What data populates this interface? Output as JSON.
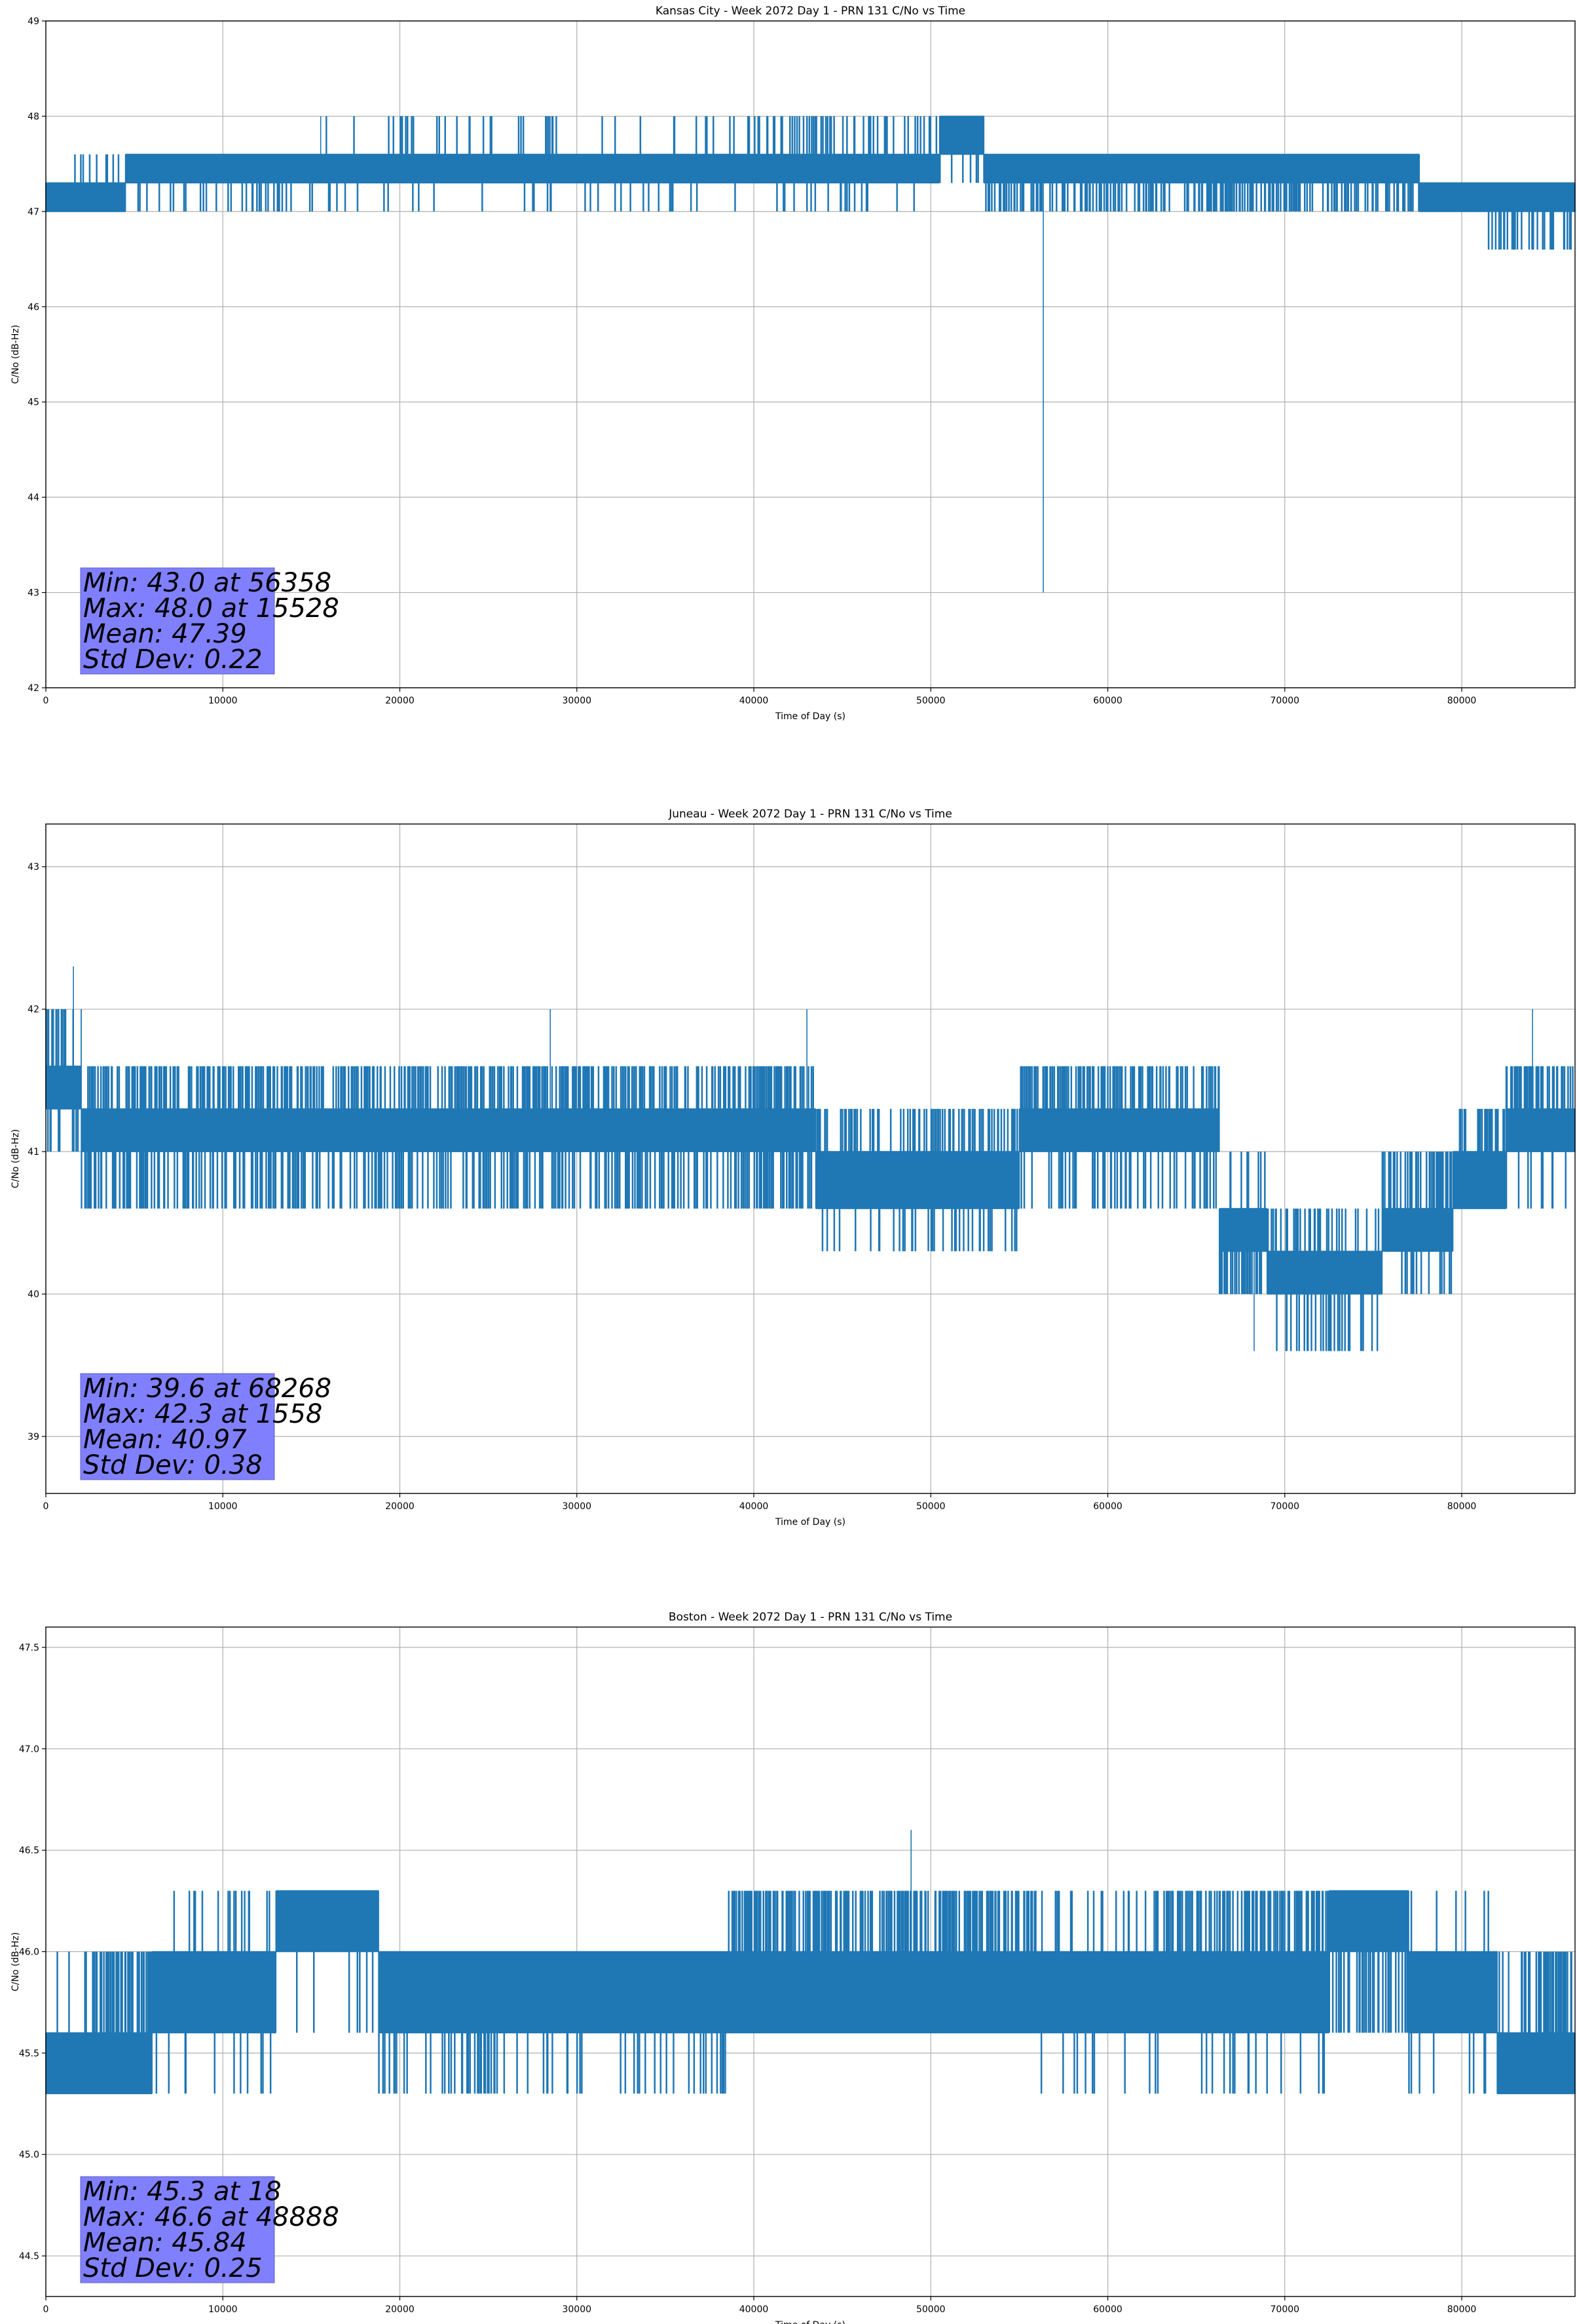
{
  "chart_data": [
    {
      "type": "line",
      "title": "Kansas City - Week 2072 Day 1 - PRN 131 C/No vs Time",
      "xlabel": "Time of Day (s)",
      "ylabel": "C/No (dB-Hz)",
      "xlim": [
        0,
        86400
      ],
      "ylim": [
        42,
        49
      ],
      "xticks": [
        0,
        10000,
        20000,
        30000,
        40000,
        50000,
        60000,
        70000,
        80000
      ],
      "yticks": [
        42,
        43,
        44,
        45,
        46,
        47,
        48,
        49
      ],
      "ytick_labels": [
        "42",
        "43",
        "44",
        "45",
        "46",
        "47",
        "48",
        "49"
      ],
      "grid": true,
      "line_color": "#1f77b4",
      "stats_box_color": "#8080ff",
      "stats": [
        "Min: 43.0 at 56358",
        "Max: 48.0 at 15528",
        "Mean: 47.39",
        "Std Dev: 0.22"
      ],
      "series": [
        {
          "name": "C/No",
          "segments": [
            {
              "x0": 0,
              "x1": 4500,
              "levels": [
                47.0,
                47.3
              ],
              "up": 47.6,
              "up_rate": 0.1,
              "down": 47.0,
              "down_rate": 0.0
            },
            {
              "x0": 4500,
              "x1": 15500,
              "levels": [
                47.3,
                47.6
              ],
              "up": 47.6,
              "up_rate": 0.0,
              "down": 47.0,
              "down_rate": 0.1
            },
            {
              "x0": 15500,
              "x1": 40000,
              "levels": [
                47.3,
                47.6
              ],
              "up": 48.0,
              "up_rate": 0.06,
              "down": 47.0,
              "down_rate": 0.03
            },
            {
              "x0": 40000,
              "x1": 50500,
              "levels": [
                47.3,
                47.6
              ],
              "up": 48.0,
              "up_rate": 0.15,
              "down": 47.0,
              "down_rate": 0.08
            },
            {
              "x0": 50500,
              "x1": 53000,
              "levels": [
                47.6,
                48.0
              ],
              "up": 48.0,
              "up_rate": 0.0,
              "down": 47.3,
              "down_rate": 0.1
            },
            {
              "x0": 53000,
              "x1": 77600,
              "levels": [
                47.3,
                47.6
              ],
              "up": 47.6,
              "up_rate": 0.0,
              "down": 47.0,
              "down_rate": 0.25
            },
            {
              "x0": 77600,
              "x1": 81500,
              "levels": [
                47.0,
                47.3
              ],
              "up": 47.3,
              "up_rate": 0.0,
              "down": 47.0,
              "down_rate": 0.0
            },
            {
              "x0": 81500,
              "x1": 86400,
              "levels": [
                47.0,
                47.3
              ],
              "up": 47.3,
              "up_rate": 0.0,
              "down": 46.6,
              "down_rate": 0.18
            }
          ],
          "spikes": [
            {
              "x": 15528,
              "y": 48.0
            },
            {
              "x": 56358,
              "y": 43.0
            }
          ]
        }
      ]
    },
    {
      "type": "line",
      "title": "Juneau - Week 2072 Day 1 - PRN 131 C/No vs Time",
      "xlabel": "Time of Day (s)",
      "ylabel": "C/No (dB-Hz)",
      "xlim": [
        0,
        86400
      ],
      "ylim": [
        38.6,
        43.3
      ],
      "xticks": [
        0,
        10000,
        20000,
        30000,
        40000,
        50000,
        60000,
        70000,
        80000
      ],
      "yticks": [
        39,
        40,
        41,
        42,
        43
      ],
      "ytick_labels": [
        "39",
        "40",
        "41",
        "42",
        "43"
      ],
      "grid": true,
      "line_color": "#1f77b4",
      "stats_box_color": "#8080ff",
      "stats": [
        "Min: 39.6 at 68268",
        "Max: 42.3 at 1558",
        "Mean: 40.97",
        "Std Dev: 0.38"
      ],
      "series": [
        {
          "name": "C/No",
          "segments": [
            {
              "x0": 0,
              "x1": 2000,
              "levels": [
                41.3,
                41.6
              ],
              "up": 42.0,
              "up_rate": 0.25,
              "down": 41.0,
              "down_rate": 0.2
            },
            {
              "x0": 2000,
              "x1": 43500,
              "levels": [
                41.0,
                41.3
              ],
              "up": 41.6,
              "up_rate": 0.3,
              "down": 40.6,
              "down_rate": 0.22
            },
            {
              "x0": 43500,
              "x1": 55000,
              "levels": [
                40.6,
                41.0
              ],
              "up": 41.3,
              "up_rate": 0.2,
              "down": 40.3,
              "down_rate": 0.1
            },
            {
              "x0": 55000,
              "x1": 66300,
              "levels": [
                41.0,
                41.3
              ],
              "up": 41.6,
              "up_rate": 0.3,
              "down": 40.6,
              "down_rate": 0.2
            },
            {
              "x0": 66300,
              "x1": 69000,
              "levels": [
                40.3,
                40.6
              ],
              "up": 41.0,
              "up_rate": 0.15,
              "down": 40.0,
              "down_rate": 0.3
            },
            {
              "x0": 69000,
              "x1": 75500,
              "levels": [
                40.0,
                40.3
              ],
              "up": 40.6,
              "up_rate": 0.2,
              "down": 39.6,
              "down_rate": 0.15
            },
            {
              "x0": 75500,
              "x1": 79500,
              "levels": [
                40.3,
                40.6
              ],
              "up": 41.0,
              "up_rate": 0.3,
              "down": 40.0,
              "down_rate": 0.1
            },
            {
              "x0": 79500,
              "x1": 82500,
              "levels": [
                40.6,
                41.0
              ],
              "up": 41.3,
              "up_rate": 0.3,
              "down": 40.6,
              "down_rate": 0.0
            },
            {
              "x0": 82500,
              "x1": 86400,
              "levels": [
                41.0,
                41.3
              ],
              "up": 41.6,
              "up_rate": 0.3,
              "down": 40.6,
              "down_rate": 0.1
            }
          ],
          "spikes": [
            {
              "x": 1558,
              "y": 42.3
            },
            {
              "x": 68268,
              "y": 39.6
            },
            {
              "x": 84000,
              "y": 42.0
            },
            {
              "x": 28500,
              "y": 42.0
            },
            {
              "x": 43000,
              "y": 42.0
            }
          ]
        }
      ]
    },
    {
      "type": "line",
      "title": "Boston - Week 2072 Day 1 - PRN 131 C/No vs Time",
      "xlabel": "Time of Day (s)",
      "ylabel": "C/No (dB-Hz)",
      "xlim": [
        0,
        86400
      ],
      "ylim": [
        44.3,
        47.6
      ],
      "xticks": [
        0,
        10000,
        20000,
        30000,
        40000,
        50000,
        60000,
        70000,
        80000
      ],
      "yticks": [
        44.5,
        45.0,
        45.5,
        46.0,
        46.5,
        47.0,
        47.5
      ],
      "ytick_labels": [
        "44.5",
        "45.0",
        "45.5",
        "46.0",
        "46.5",
        "47.0",
        "47.5"
      ],
      "grid": true,
      "line_color": "#1f77b4",
      "stats_box_color": "#8080ff",
      "stats": [
        "Min: 45.3 at 18",
        "Max: 46.6 at 48888",
        "Mean: 45.84",
        "Std Dev: 0.25"
      ],
      "series": [
        {
          "name": "C/No",
          "segments": [
            {
              "x0": 0,
              "x1": 2500,
              "levels": [
                45.3,
                45.6
              ],
              "up": 46.0,
              "up_rate": 0.05,
              "down": 45.3,
              "down_rate": 0.0
            },
            {
              "x0": 2500,
              "x1": 6000,
              "levels": [
                45.3,
                45.6
              ],
              "up": 46.0,
              "up_rate": 0.35,
              "down": 45.3,
              "down_rate": 0.0
            },
            {
              "x0": 6000,
              "x1": 13000,
              "levels": [
                45.6,
                46.0
              ],
              "up": 46.3,
              "up_rate": 0.05,
              "down": 45.3,
              "down_rate": 0.03
            },
            {
              "x0": 13000,
              "x1": 18800,
              "levels": [
                46.0,
                46.3
              ],
              "up": 46.3,
              "up_rate": 0.0,
              "down": 45.6,
              "down_rate": 0.05
            },
            {
              "x0": 18800,
              "x1": 38500,
              "levels": [
                45.6,
                46.0
              ],
              "up": 46.0,
              "up_rate": 0.0,
              "down": 45.3,
              "down_rate": 0.12
            },
            {
              "x0": 38500,
              "x1": 56000,
              "levels": [
                45.6,
                46.0
              ],
              "up": 46.3,
              "up_rate": 0.35,
              "down": 45.6,
              "down_rate": 0.0
            },
            {
              "x0": 56000,
              "x1": 63000,
              "levels": [
                45.6,
                46.0
              ],
              "up": 46.3,
              "up_rate": 0.08,
              "down": 45.3,
              "down_rate": 0.06
            },
            {
              "x0": 63000,
              "x1": 72500,
              "levels": [
                45.6,
                46.0
              ],
              "up": 46.3,
              "up_rate": 0.3,
              "down": 45.3,
              "down_rate": 0.04
            },
            {
              "x0": 72500,
              "x1": 77000,
              "levels": [
                46.0,
                46.3
              ],
              "up": 46.3,
              "up_rate": 0.0,
              "down": 45.6,
              "down_rate": 0.2
            },
            {
              "x0": 77000,
              "x1": 82000,
              "levels": [
                45.6,
                46.0
              ],
              "up": 46.3,
              "up_rate": 0.05,
              "down": 45.3,
              "down_rate": 0.05
            },
            {
              "x0": 82000,
              "x1": 86400,
              "levels": [
                45.3,
                45.6
              ],
              "up": 46.0,
              "up_rate": 0.3,
              "down": 45.3,
              "down_rate": 0.0
            }
          ],
          "spikes": [
            {
              "x": 18,
              "y": 45.3
            },
            {
              "x": 48888,
              "y": 46.6
            }
          ]
        }
      ]
    }
  ]
}
